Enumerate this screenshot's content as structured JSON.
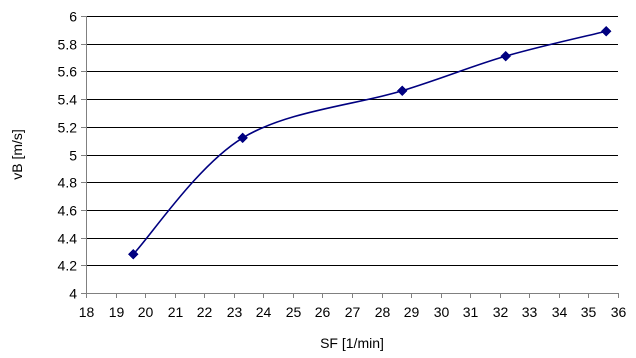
{
  "chart_data": {
    "type": "line",
    "smooth": true,
    "xlabel": "SF [1/min]",
    "ylabel": "vB [m/s]",
    "xlim": [
      18,
      36
    ],
    "ylim": [
      4,
      6
    ],
    "x_ticks": [
      "18",
      "19",
      "20",
      "21",
      "22",
      "23",
      "24",
      "25",
      "26",
      "27",
      "28",
      "29",
      "30",
      "31",
      "32",
      "33",
      "34",
      "35",
      "36"
    ],
    "y_ticks": [
      "4",
      "4.2",
      "4.4",
      "4.6",
      "4.8",
      "5",
      "5.2",
      "5.4",
      "5.6",
      "5.8",
      "6"
    ],
    "grid": "horizontal",
    "legend": "none",
    "series": [
      {
        "color": "#000080",
        "marker": "diamond",
        "points": [
          {
            "x": 19.6,
            "y": 4.28
          },
          {
            "x": 23.3,
            "y": 5.12
          },
          {
            "x": 28.7,
            "y": 5.46
          },
          {
            "x": 32.2,
            "y": 5.71
          },
          {
            "x": 35.6,
            "y": 5.89
          }
        ]
      }
    ]
  }
}
